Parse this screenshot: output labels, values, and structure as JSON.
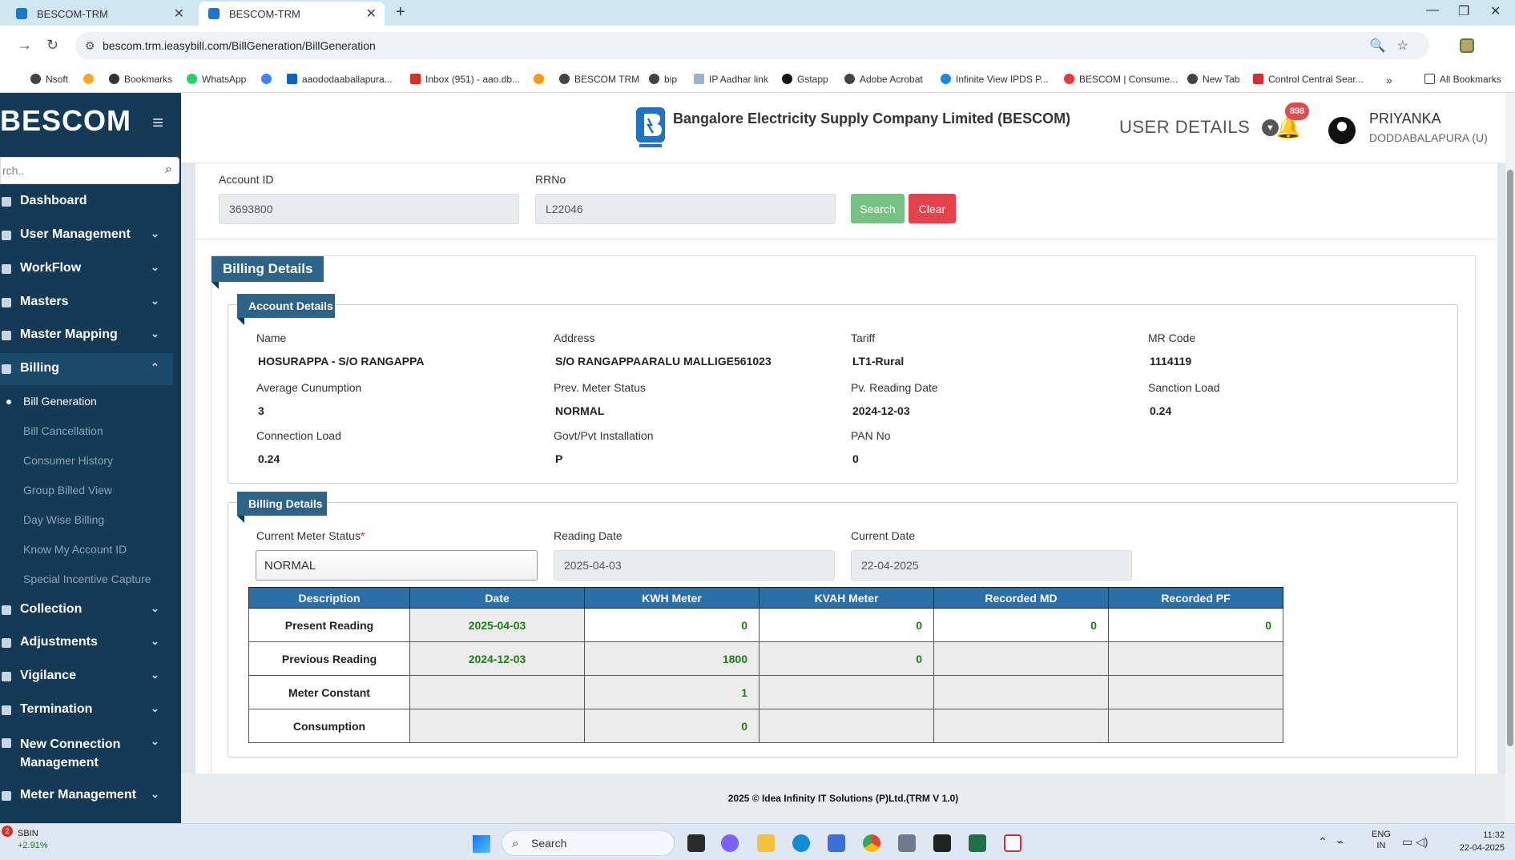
{
  "browser": {
    "tabs": [
      {
        "title": "BESCOM-TRM"
      },
      {
        "title": "BESCOM-TRM"
      }
    ],
    "url": "bescom.trm.ieasybill.com/BillGeneration/BillGeneration",
    "bookmarks": [
      "Nsoft",
      "Bookmarks",
      "WhatsApp",
      "aaododaaballapura...",
      "Inbox (951) - aao.db...",
      "BESCOM TRM",
      "bip",
      "IP Aadhar link",
      "Gstapp",
      "Adobe Acrobat",
      "Infinite View IPDS P...",
      "BESCOM | Consume...",
      "New Tab",
      "Control Central Sear...",
      "All Bookmarks"
    ]
  },
  "sidebar": {
    "brand": "BESCOM",
    "search_placeholder": "rch..",
    "menu": [
      {
        "label": "Dashboard",
        "icon": "dashboard-icon"
      },
      {
        "label": "User Management",
        "icon": "users-icon"
      },
      {
        "label": "WorkFlow",
        "icon": "workflow-icon"
      },
      {
        "label": "Masters",
        "icon": "masters-icon"
      },
      {
        "label": "Master Mapping",
        "icon": "mapping-icon"
      },
      {
        "label": "Billing",
        "icon": "monitor-icon"
      },
      {
        "label": "Collection",
        "icon": "list-icon"
      },
      {
        "label": "Adjustments",
        "icon": "adjust-icon"
      },
      {
        "label": "Vigilance",
        "icon": "vigilance-icon"
      },
      {
        "label": "Termination",
        "icon": "termination-icon"
      },
      {
        "label": "New Connection Management",
        "icon": "plus-circle-icon"
      },
      {
        "label": "Meter Management",
        "icon": "meter-icon"
      }
    ],
    "billing_sub": [
      "Bill Generation",
      "Bill Cancellation",
      "Consumer History",
      "Group Billed View",
      "Day Wise Billing",
      "Know My Account ID",
      "Special Incentive Capture"
    ]
  },
  "header": {
    "company": "Bangalore Electricity Supply Company Limited (BESCOM)",
    "user_details": "USER DETAILS",
    "notifications": "898",
    "user_name": "PRIYANKA",
    "user_location": "DODDABALAPURA (U)"
  },
  "search_form": {
    "account_id_label": "Account ID",
    "account_id_value": "3693800",
    "rrno_label": "RRNo",
    "rrno_value": "L22046",
    "search_label": "Search",
    "clear_label": "Clear"
  },
  "billing": {
    "panel_title": "Billing Details",
    "account_section_title": "Account Details",
    "account_fields": [
      {
        "label": "Name",
        "value": "HOSURAPPA - S/O RANGAPPA"
      },
      {
        "label": "Address",
        "value": "S/O RANGAPPAARALU MALLIGE561023"
      },
      {
        "label": "Tariff",
        "value": "LT1-Rural"
      },
      {
        "label": "MR Code",
        "value": "1114119"
      },
      {
        "label": "Average Cunumption",
        "value": "3"
      },
      {
        "label": "Prev. Meter Status",
        "value": "NORMAL"
      },
      {
        "label": "Pv. Reading Date",
        "value": "2024-12-03"
      },
      {
        "label": "Sanction Load",
        "value": "0.24"
      },
      {
        "label": "Connection Load",
        "value": "0.24"
      },
      {
        "label": "Govt/Pvt Installation",
        "value": "P"
      },
      {
        "label": "PAN No",
        "value": "0"
      }
    ],
    "billing_section_title": "Billing Details",
    "current_meter_status_label": "Current Meter Status",
    "required_mark": "*",
    "current_meter_status_value": "NORMAL",
    "reading_date_label": "Reading Date",
    "reading_date_value": "2025-04-03",
    "current_date_label": "Current Date",
    "current_date_value": "22-04-2025",
    "table": {
      "headers": [
        "Description",
        "Date",
        "KWH Meter",
        "KVAH Meter",
        "Recorded MD",
        "Recorded PF"
      ],
      "rows": [
        [
          "Present Reading",
          "2025-04-03",
          "0",
          "0",
          "0",
          "0"
        ],
        [
          "Previous Reading",
          "2024-12-03",
          "1800",
          "0",
          "",
          ""
        ],
        [
          "Meter Constant",
          "",
          "1",
          "",
          "",
          ""
        ],
        [
          "Consumption",
          "",
          "0",
          "",
          "",
          ""
        ]
      ]
    }
  },
  "footer": "2025 © Idea Infinity IT Solutions (P)Ltd.(TRM V 1.0)",
  "taskbar": {
    "stock_name": "SBIN",
    "stock_change": "+2.91%",
    "stock_badge": "2",
    "search_label": "Search",
    "lang_1": "ENG",
    "lang_2": "IN",
    "time": "11:32",
    "date": "22-04-2025"
  }
}
